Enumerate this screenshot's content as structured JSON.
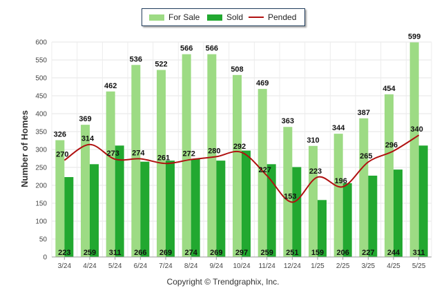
{
  "chart_data": {
    "type": "bar",
    "categories": [
      "3/24",
      "4/24",
      "5/24",
      "6/24",
      "7/24",
      "8/24",
      "9/24",
      "10/24",
      "11/24",
      "12/24",
      "1/25",
      "2/25",
      "3/25",
      "4/25",
      "5/25"
    ],
    "series": [
      {
        "name": "For Sale",
        "type": "bar",
        "color": "#9ddb84",
        "values": [
          326,
          369,
          462,
          536,
          522,
          566,
          566,
          508,
          469,
          363,
          310,
          344,
          387,
          454,
          599
        ]
      },
      {
        "name": "Sold",
        "type": "bar",
        "color": "#22a830",
        "values": [
          223,
          259,
          311,
          266,
          269,
          274,
          269,
          297,
          259,
          251,
          159,
          206,
          227,
          244,
          311
        ]
      },
      {
        "name": "Pended",
        "type": "line",
        "color": "#b01010",
        "values": [
          270,
          314,
          273,
          274,
          261,
          272,
          280,
          292,
          227,
          153,
          223,
          196,
          265,
          296,
          340
        ]
      }
    ],
    "ylabel": "Number of Homes",
    "xlabel": "",
    "ylim": [
      0,
      600
    ],
    "yticks": [
      0,
      50,
      100,
      150,
      200,
      250,
      300,
      350,
      400,
      450,
      500,
      550,
      600
    ],
    "grid": true,
    "legend_position": "top-center"
  },
  "footer": {
    "copyright": "Copyright © Trendgraphix, Inc."
  }
}
